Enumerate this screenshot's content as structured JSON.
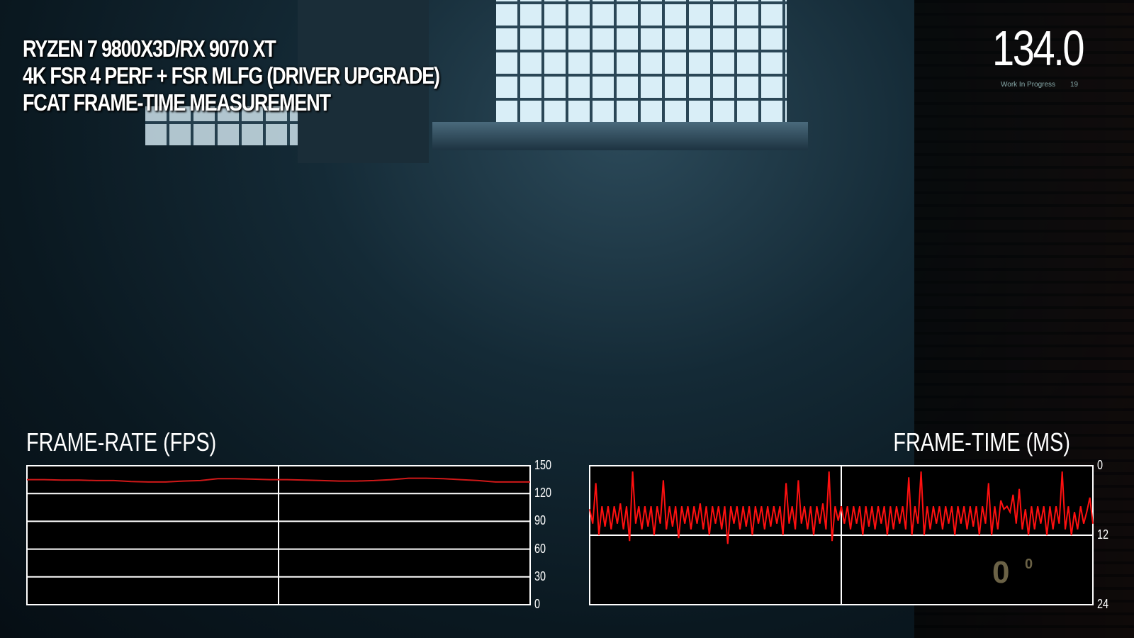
{
  "overlay": {
    "title_lines": [
      "RYZEN 7 9800X3D/RX 9070 XT",
      "4K FSR 4 PERF + FSR MLFG (DRIVER UPGRADE)",
      "FCAT FRAME-TIME MEASUREMENT"
    ],
    "current_fps": "134.0",
    "watermark": "Work In Progress",
    "watermark_number": "19",
    "counter_text": "0",
    "counter_sup": "0"
  },
  "chart_data": [
    {
      "type": "line",
      "title": "FRAME-RATE (FPS)",
      "ylim": [
        0,
        150
      ],
      "yticks": [
        "150",
        "120",
        "90",
        "60",
        "30",
        "0"
      ],
      "grid": true,
      "color": "#d01818",
      "values": [
        135,
        135,
        134.5,
        134.5,
        134,
        134,
        133,
        132.5,
        132.5,
        133.5,
        134,
        136,
        136,
        135.5,
        135,
        135,
        134.5,
        134,
        133.5,
        133.5,
        134,
        135,
        136.5,
        136.5,
        136,
        135,
        134,
        132.5,
        132.5,
        132.5
      ]
    },
    {
      "type": "line",
      "title": "FRAME-TIME (MS)",
      "ylim": [
        24,
        0
      ],
      "yticks": [
        "0",
        "12",
        "24"
      ],
      "grid": true,
      "color": "#ff1010",
      "values": [
        7.5,
        10,
        3,
        12,
        7,
        10.5,
        7,
        11,
        7,
        10,
        6.5,
        11,
        7,
        13,
        1,
        10,
        7,
        11,
        7,
        10.5,
        7,
        12,
        7,
        10,
        2.5,
        11,
        7,
        10.5,
        7,
        12.5,
        7,
        10,
        7,
        11,
        7,
        10,
        6.5,
        11,
        7,
        12,
        7,
        10,
        7,
        11,
        7,
        13.5,
        7,
        10,
        7,
        11,
        7,
        10.5,
        7,
        12,
        7,
        10,
        7,
        11,
        7,
        10.5,
        7,
        10,
        7,
        12,
        3,
        10,
        7,
        11,
        2.5,
        10,
        7,
        11,
        7,
        12,
        7,
        10,
        6.5,
        11,
        1,
        13,
        7,
        9.5,
        7,
        10,
        7,
        11,
        7,
        10,
        7,
        12,
        7,
        10.5,
        7,
        11,
        7,
        10,
        7,
        12,
        7,
        11,
        7,
        10,
        7,
        11,
        2,
        12,
        7,
        10,
        1,
        12,
        7,
        11,
        7,
        10,
        7,
        11,
        7,
        10,
        7,
        12,
        7,
        10,
        7,
        11,
        7,
        10.5,
        7,
        12,
        7,
        10,
        3,
        12,
        7,
        11,
        6,
        7.5,
        7,
        8,
        5,
        10,
        4,
        11,
        7.5,
        12,
        7,
        11,
        7,
        10,
        7,
        12,
        7,
        11,
        7,
        10,
        1,
        11,
        7,
        12,
        8,
        11,
        7,
        10,
        8,
        5.5,
        10
      ]
    }
  ]
}
